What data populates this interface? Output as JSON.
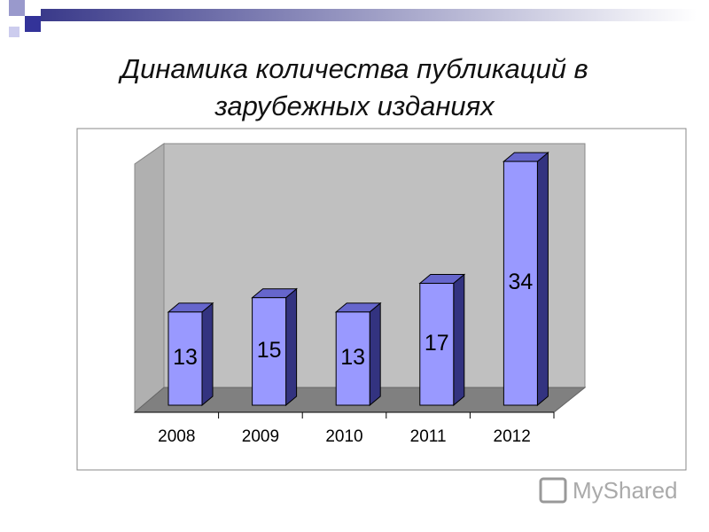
{
  "chart_data": {
    "type": "bar3d",
    "title_lines": [
      "Динамика количества публикаций в",
      "зарубежных изданиях"
    ],
    "categories": [
      "2008",
      "2009",
      "2010",
      "2011",
      "2012"
    ],
    "values": [
      13,
      15,
      13,
      17,
      34
    ],
    "color": "#9999ff",
    "ylim": [
      0,
      35
    ],
    "watermark": "MyShared"
  }
}
